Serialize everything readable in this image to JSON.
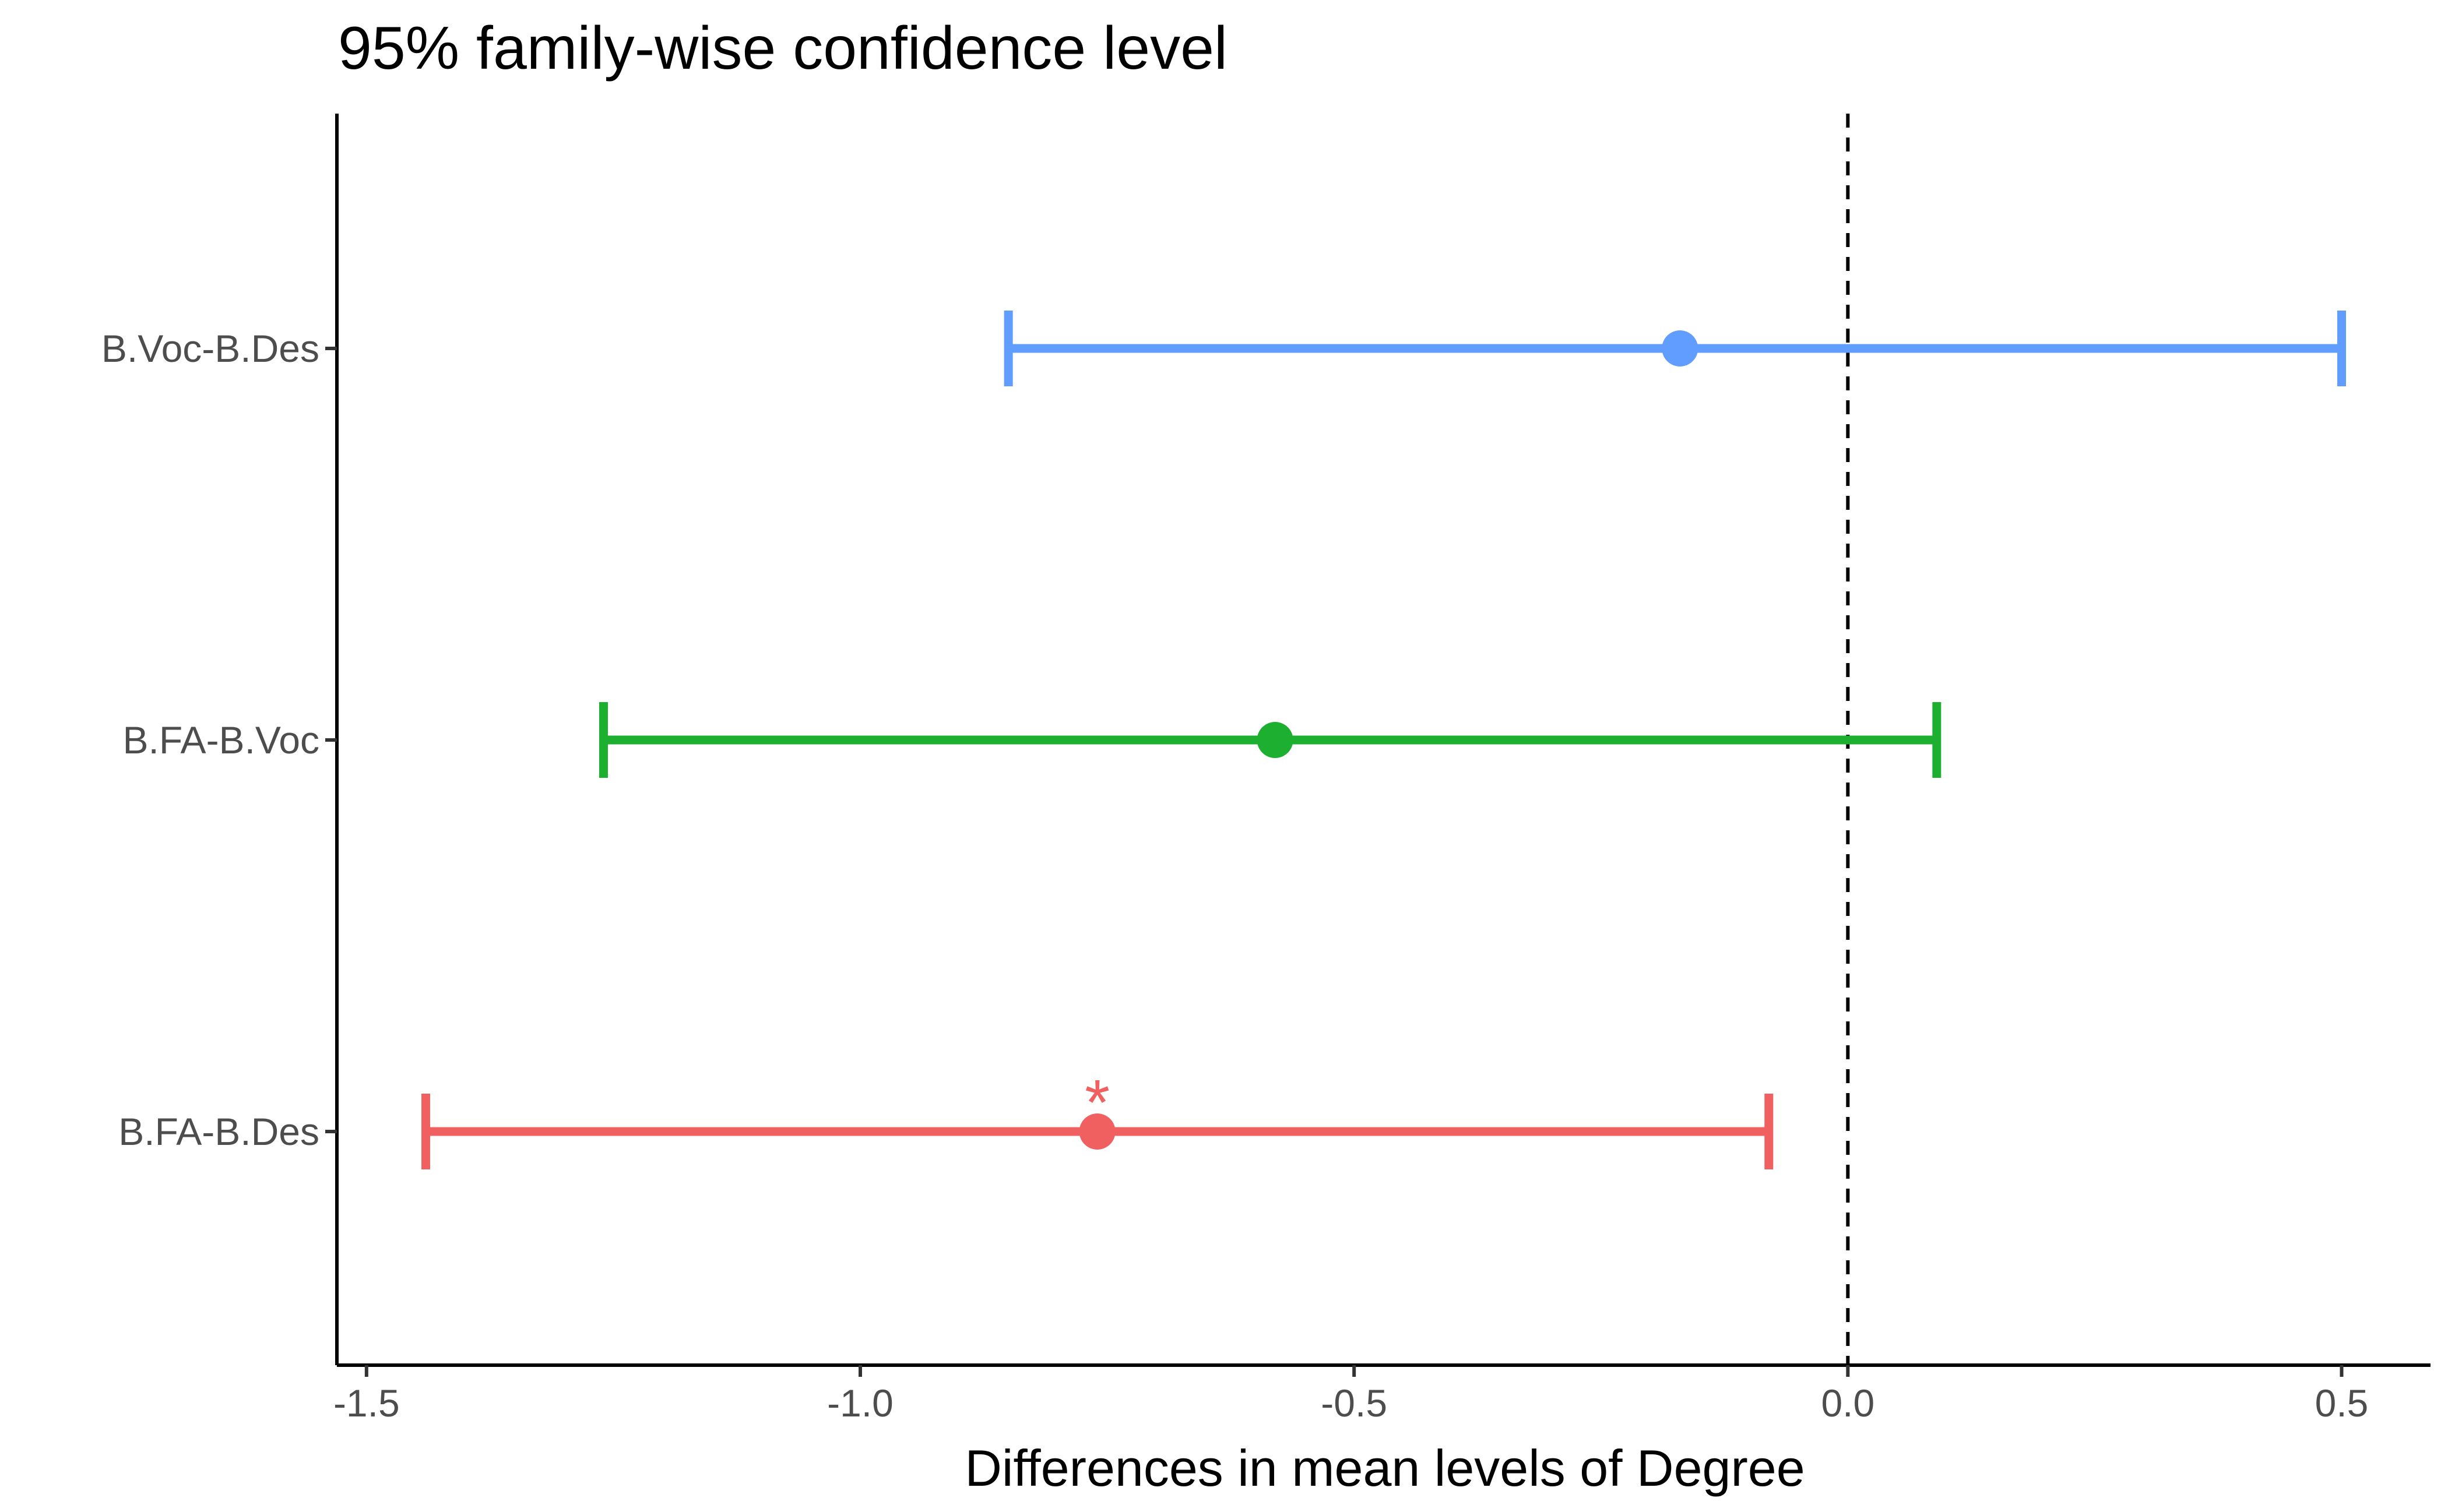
{
  "chart_data": {
    "type": "errorbar",
    "title": "95% family-wise confidence level",
    "xlabel": "Differences in mean levels of Degree",
    "ylabel": "",
    "xlim": [
      -1.53,
      0.59
    ],
    "x_ticks": [
      -1.5,
      -1.0,
      -0.5,
      0.0,
      0.5
    ],
    "x_tick_labels": [
      "-1.5",
      "-1.0",
      "-0.5",
      "0.0",
      "0.5"
    ],
    "reference_line": 0.0,
    "grid": false,
    "legend": "none",
    "comparisons": [
      {
        "label": "B.Voc-B.Des",
        "estimate": -0.17,
        "lower": -0.85,
        "upper": 0.5,
        "color": "#619CFF",
        "significance": ""
      },
      {
        "label": "B.FA-B.Voc",
        "estimate": -0.58,
        "lower": -1.26,
        "upper": 0.09,
        "color": "#1DAF2F",
        "significance": ""
      },
      {
        "label": "B.FA-B.Des",
        "estimate": -0.76,
        "lower": -1.44,
        "upper": -0.08,
        "color": "#F06060",
        "significance": "*"
      }
    ]
  }
}
